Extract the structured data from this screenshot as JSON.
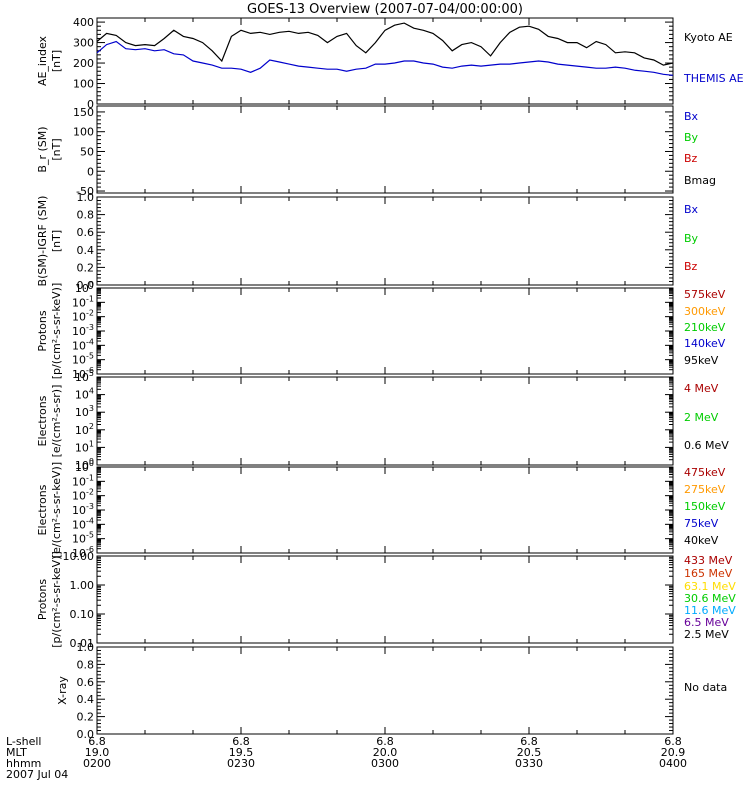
{
  "title": "GOES-13 Overview (2007-07-04/00:00:00)",
  "colors": {
    "axis": "#000000",
    "kyoto": "#000000",
    "themis": "#0000cc",
    "bx": "#0000cc",
    "by": "#00cc00",
    "bz": "#cc0000",
    "bmag": "#000000",
    "dark_red": "#aa0000",
    "orange": "#ff9900",
    "green": "#00cc00",
    "blue": "#0000cc",
    "yellow": "#ffdd00",
    "cyan": "#00aaff",
    "purple": "#660099"
  },
  "xaxis": {
    "row_labels": [
      "L-shell",
      "MLT",
      "hhmm",
      "2007 Jul 04"
    ],
    "columns": [
      {
        "lshell": "6.8",
        "mlt": "19.0",
        "hhmm": "0200"
      },
      {
        "lshell": "6.8",
        "mlt": "19.5",
        "hhmm": "0230"
      },
      {
        "lshell": "6.8",
        "mlt": "20.0",
        "hhmm": "0300"
      },
      {
        "lshell": "6.8",
        "mlt": "20.5",
        "hhmm": "0330"
      },
      {
        "lshell": "6.8",
        "mlt": "20.9",
        "hhmm": "0400"
      }
    ],
    "time_range_min": [
      0,
      120
    ],
    "tick_times_min": [
      0,
      30,
      60,
      90,
      120
    ]
  },
  "chart_data": [
    {
      "type": "line",
      "ylabel": [
        "AE_index",
        "[nT]"
      ],
      "ylim": [
        0,
        420
      ],
      "yticks": [
        0,
        100,
        200,
        300,
        400
      ],
      "ytick_labels": [
        "0",
        "100",
        "200",
        "300",
        "400"
      ],
      "legend": [
        {
          "label": "Kyoto AE",
          "color": "#000000"
        },
        {
          "label": "THEMIS AE",
          "color": "#0000cc"
        }
      ],
      "series": [
        {
          "name": "Kyoto AE",
          "color": "#000000",
          "x": [
            0,
            2,
            4,
            6,
            8,
            10,
            12,
            14,
            16,
            18,
            20,
            22,
            24,
            26,
            28,
            30,
            32,
            34,
            36,
            38,
            40,
            42,
            44,
            46,
            48,
            50,
            52,
            54,
            56,
            58,
            60,
            62,
            64,
            66,
            68,
            70,
            72,
            74,
            76,
            78,
            80,
            82,
            84,
            86,
            88,
            90,
            92,
            94,
            96,
            98,
            100,
            102,
            104,
            106,
            108,
            110,
            112,
            114,
            116,
            118,
            120
          ],
          "y": [
            305,
            345,
            335,
            300,
            285,
            290,
            285,
            320,
            360,
            330,
            320,
            300,
            260,
            210,
            330,
            360,
            345,
            350,
            340,
            350,
            355,
            345,
            350,
            335,
            300,
            330,
            345,
            285,
            250,
            300,
            360,
            385,
            395,
            370,
            360,
            345,
            310,
            260,
            290,
            300,
            280,
            235,
            300,
            350,
            375,
            380,
            365,
            330,
            320,
            300,
            300,
            275,
            305,
            290,
            250,
            255,
            250,
            225,
            215,
            190,
            200
          ]
        },
        {
          "name": "THEMIS AE",
          "color": "#0000cc",
          "x": [
            0,
            2,
            4,
            6,
            8,
            10,
            12,
            14,
            16,
            18,
            20,
            22,
            24,
            26,
            28,
            30,
            32,
            34,
            36,
            38,
            40,
            42,
            44,
            46,
            48,
            50,
            52,
            54,
            56,
            58,
            60,
            62,
            64,
            66,
            68,
            70,
            72,
            74,
            76,
            78,
            80,
            82,
            84,
            86,
            88,
            90,
            92,
            94,
            96,
            98,
            100,
            102,
            104,
            106,
            108,
            110,
            112,
            114,
            116,
            118,
            120
          ],
          "y": [
            250,
            290,
            305,
            270,
            265,
            270,
            260,
            265,
            245,
            240,
            210,
            200,
            190,
            175,
            175,
            170,
            155,
            175,
            215,
            205,
            195,
            185,
            180,
            175,
            170,
            170,
            160,
            170,
            175,
            195,
            195,
            200,
            210,
            210,
            200,
            195,
            180,
            175,
            185,
            190,
            185,
            190,
            195,
            195,
            200,
            205,
            210,
            205,
            195,
            190,
            185,
            180,
            175,
            175,
            180,
            175,
            165,
            160,
            155,
            145,
            140
          ]
        }
      ]
    },
    {
      "type": "line",
      "ylabel": [
        "B_r (SM)",
        "[nT]"
      ],
      "ylim": [
        -55,
        165
      ],
      "yticks": [
        -50,
        0,
        50,
        100,
        150
      ],
      "ytick_labels": [
        "-50",
        "0",
        "50",
        "100",
        "150"
      ],
      "legend": [
        {
          "label": "Bx",
          "color": "#0000cc"
        },
        {
          "label": "By",
          "color": "#00cc00"
        },
        {
          "label": "Bz",
          "color": "#cc0000"
        },
        {
          "label": "Bmag",
          "color": "#000000"
        }
      ],
      "series": []
    },
    {
      "type": "line",
      "ylabel": [
        "B(SM)-IGRF (SM)",
        "[nT]"
      ],
      "ylim": [
        0,
        1.0
      ],
      "yticks": [
        0,
        0.2,
        0.4,
        0.6,
        0.8,
        1.0
      ],
      "ytick_labels": [
        "0.0",
        "0.2",
        "0.4",
        "0.6",
        "0.8",
        "1.0"
      ],
      "legend": [
        {
          "label": "Bx",
          "color": "#0000cc"
        },
        {
          "label": "By",
          "color": "#00cc00"
        },
        {
          "label": "Bz",
          "color": "#cc0000"
        }
      ],
      "series": []
    },
    {
      "type": "line",
      "scale": "log",
      "ylabel": [
        "Protons",
        "[p/(cm²-s-sr-keV)]"
      ],
      "ylim_exp": [
        -6,
        0
      ],
      "yticks_exp": [
        -6,
        -5,
        -4,
        -3,
        -2,
        -1,
        0
      ],
      "legend": [
        {
          "label": "575keV",
          "color": "#aa0000"
        },
        {
          "label": "300keV",
          "color": "#ff9900"
        },
        {
          "label": "210keV",
          "color": "#00cc00"
        },
        {
          "label": "140keV",
          "color": "#0000cc"
        },
        {
          "label": "95keV",
          "color": "#000000"
        }
      ],
      "series": []
    },
    {
      "type": "line",
      "scale": "log",
      "ylabel": [
        "Electrons",
        "[e/(cm²-s-sr)]"
      ],
      "ylim_exp": [
        0,
        5
      ],
      "yticks_exp": [
        0,
        1,
        2,
        3,
        4,
        5
      ],
      "legend": [
        {
          "label": "4 MeV",
          "color": "#aa0000"
        },
        {
          "label": "2 MeV",
          "color": "#00cc00"
        },
        {
          "label": "0.6 MeV",
          "color": "#000000"
        }
      ],
      "series": []
    },
    {
      "type": "line",
      "scale": "log",
      "ylabel": [
        "Electrons",
        "[e/(cm²-s-sr-keV)]"
      ],
      "ylim_exp": [
        -6,
        0
      ],
      "yticks_exp": [
        -6,
        -5,
        -4,
        -3,
        -2,
        -1,
        0
      ],
      "legend": [
        {
          "label": "475keV",
          "color": "#aa0000"
        },
        {
          "label": "275keV",
          "color": "#ff9900"
        },
        {
          "label": "150keV",
          "color": "#00cc00"
        },
        {
          "label": "75keV",
          "color": "#0000cc"
        },
        {
          "label": "40keV",
          "color": "#000000"
        }
      ],
      "series": []
    },
    {
      "type": "line",
      "scale": "log",
      "ylabel": [
        "Protons",
        "[p/(cm²-s-sr-keV)]"
      ],
      "ylim_exp": [
        -2,
        1
      ],
      "yticks_exp": [
        -2,
        -1,
        0,
        1
      ],
      "ytick_labels": [
        "0.01",
        "0.10",
        "1.00",
        "10.00"
      ],
      "legend": [
        {
          "label": "433 MeV",
          "color": "#aa0000"
        },
        {
          "label": "165 MeV",
          "color": "#cc3300"
        },
        {
          "label": "63.1 MeV",
          "color": "#ffdd00"
        },
        {
          "label": "30.6 MeV",
          "color": "#00cc00"
        },
        {
          "label": "11.6 MeV",
          "color": "#00aaff"
        },
        {
          "label": "6.5 MeV",
          "color": "#660099"
        },
        {
          "label": "2.5 MeV",
          "color": "#000000"
        }
      ],
      "series": []
    },
    {
      "type": "line",
      "ylabel": [
        "X-ray"
      ],
      "ylim": [
        0,
        1.0
      ],
      "yticks": [
        0,
        0.2,
        0.4,
        0.6,
        0.8,
        1.0
      ],
      "ytick_labels": [
        "0.0",
        "0.2",
        "0.4",
        "0.6",
        "0.8",
        "1.0"
      ],
      "legend": [
        {
          "label": "No data",
          "color": "#000000"
        }
      ],
      "series": []
    }
  ]
}
